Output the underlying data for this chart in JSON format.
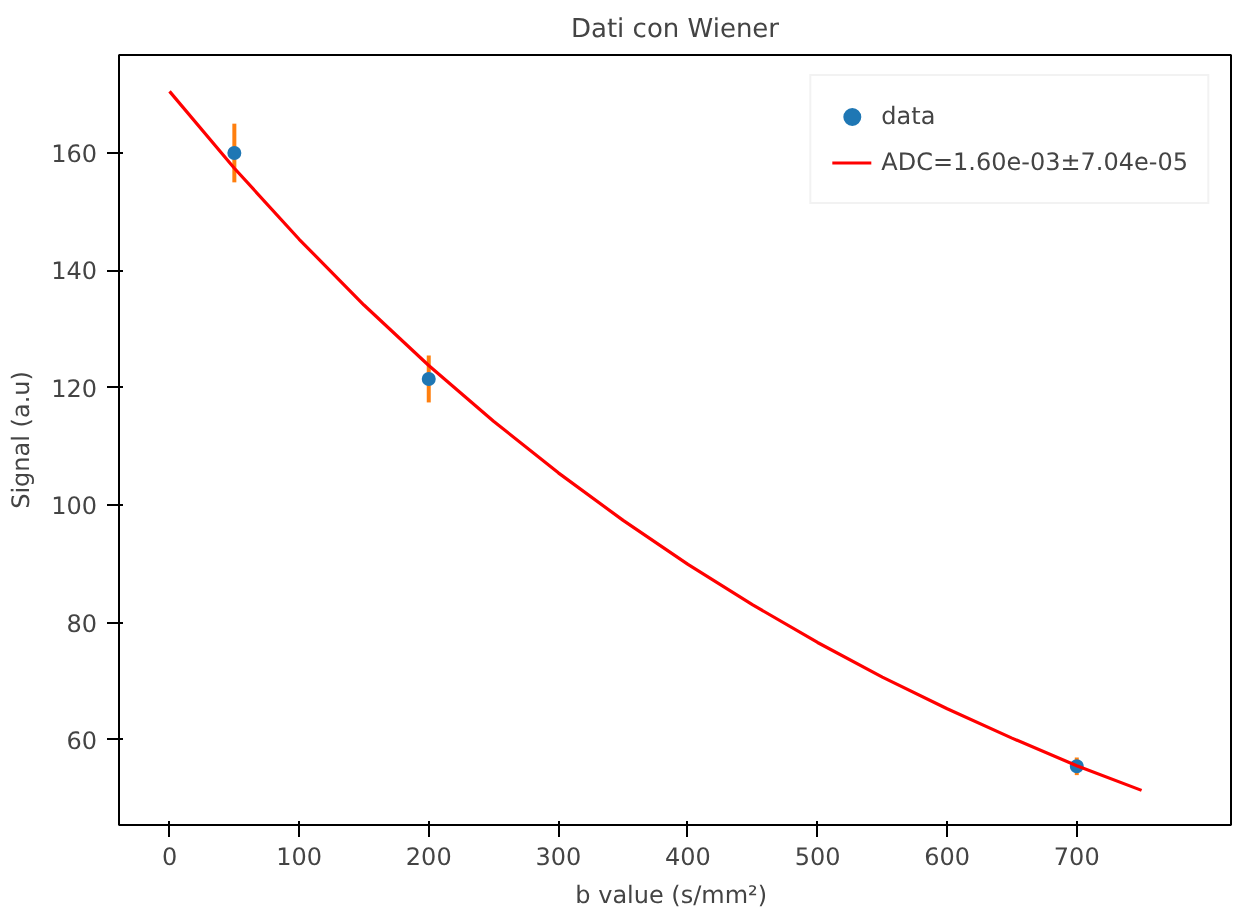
{
  "chart_data": {
    "type": "line",
    "title": "Dati con Wiener",
    "xlabel": "b  value (s/mm²)",
    "ylabel": "Signal (a.u)",
    "xlim": [
      -39,
      819
    ],
    "ylim": [
      45.5,
      176.7
    ],
    "xticks": [
      0,
      100,
      200,
      300,
      400,
      500,
      600,
      700
    ],
    "yticks": [
      60,
      80,
      100,
      120,
      140,
      160
    ],
    "legend": "top right",
    "grid": false,
    "series": [
      {
        "name": "data",
        "type": "scatter",
        "marker": "circle",
        "color": "#1f77b4",
        "x": [
          50,
          200,
          700
        ],
        "values": [
          160,
          121.5,
          55.5
        ],
        "errors": [
          5,
          4,
          1.5
        ]
      },
      {
        "name": "ADC=1.60e-03±7.04e-05",
        "color": "#ff0000",
        "x": [
          0,
          50,
          100,
          150,
          200,
          250,
          300,
          350,
          400,
          450,
          500,
          550,
          600,
          650,
          700,
          750
        ],
        "values": [
          170.5,
          157.4,
          145.3,
          134.1,
          123.8,
          114.3,
          105.5,
          97.4,
          89.9,
          83.0,
          76.6,
          70.7,
          65.3,
          60.3,
          55.6,
          51.4
        ]
      }
    ]
  }
}
